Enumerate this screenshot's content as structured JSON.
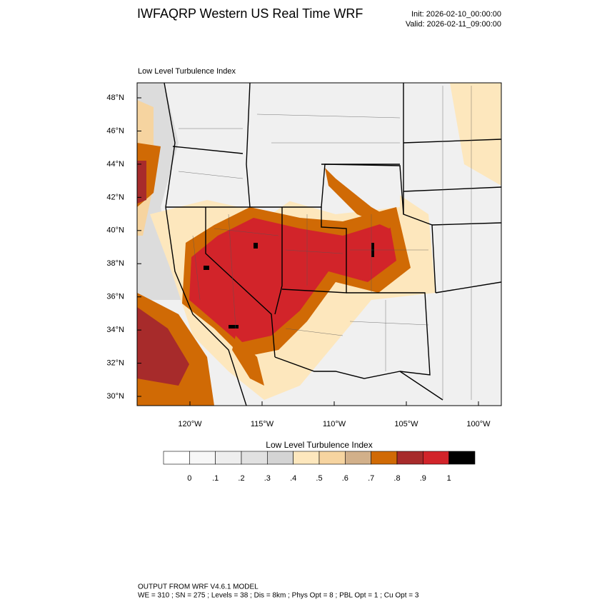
{
  "header": {
    "title": "IWFAQRP Western US Real Time WRF",
    "init": "Init: 2026-02-10_00:00:00",
    "valid": "Valid: 2026-02-11_09:00:00"
  },
  "map": {
    "subtitle": "Low Level Turbulence Index",
    "lat_labels": [
      "48°N",
      "46°N",
      "44°N",
      "42°N",
      "40°N",
      "38°N",
      "36°N",
      "34°N",
      "32°N",
      "30°N"
    ],
    "lon_labels": [
      "120°W",
      "115°W",
      "110°W",
      "105°W",
      "100°W"
    ]
  },
  "colorbar": {
    "title": "Low Level Turbulence Index",
    "colors": [
      "#ffffff",
      "#f7f7f7",
      "#eeeeee",
      "#e1e1e1",
      "#d4d4d4",
      "#fde7bd",
      "#f6d4a0",
      "#d2b08a",
      "#d06a05",
      "#a72b2b",
      "#d2242a",
      "#000000"
    ],
    "labels": [
      "0",
      ".1",
      ".2",
      ".3",
      ".4",
      ".5",
      ".6",
      ".7",
      ".8",
      ".9",
      "1"
    ]
  },
  "footer": {
    "line1": "OUTPUT FROM WRF V4.6.1 MODEL",
    "line2": "WE = 310 ; SN = 275 ; Levels = 38 ; Dis = 8km ; Phys Opt = 8 ; PBL Opt = 1 ; Cu Opt = 3"
  }
}
